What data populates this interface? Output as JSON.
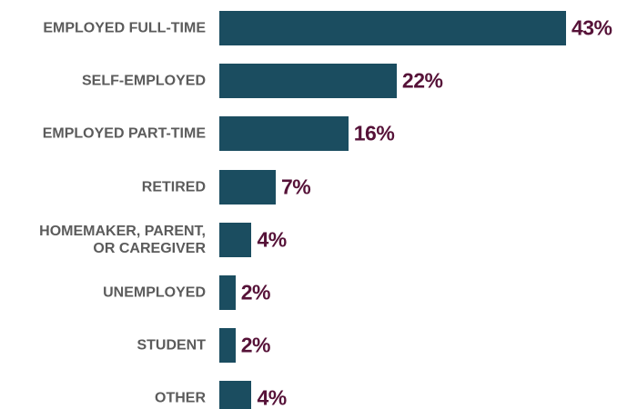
{
  "chart_data": {
    "type": "bar",
    "orientation": "horizontal",
    "categories": [
      "EMPLOYED FULL-TIME",
      "SELF-EMPLOYED",
      "EMPLOYED PART-TIME",
      "RETIRED",
      "HOMEMAKER, PARENT,\nOR CAREGIVER",
      "UNEMPLOYED",
      "STUDENT",
      "OTHER"
    ],
    "values": [
      43,
      22,
      16,
      7,
      4,
      2,
      2,
      4
    ],
    "value_labels": [
      "43%",
      "22%",
      "16%",
      "7%",
      "4%",
      "2%",
      "2%",
      "4%"
    ],
    "color": "#1b4d60",
    "label_color": "#561238"
  }
}
